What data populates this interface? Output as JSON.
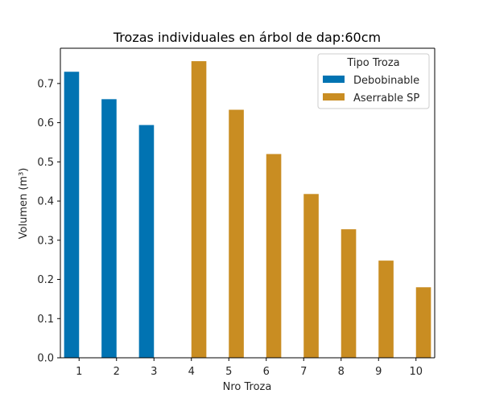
{
  "chart_data": {
    "type": "bar",
    "title": "Trozas individuales en árbol de dap:60cm",
    "xlabel": "Nro Troza",
    "ylabel": "Volumen (m³)",
    "categories": [
      "1",
      "2",
      "3",
      "4",
      "5",
      "6",
      "7",
      "8",
      "9",
      "10"
    ],
    "ylim": [
      0,
      0.79
    ],
    "yticks": [
      0.0,
      0.1,
      0.2,
      0.3,
      0.4,
      0.5,
      0.6,
      0.7
    ],
    "ytick_labels": [
      "0.0",
      "0.1",
      "0.2",
      "0.3",
      "0.4",
      "0.5",
      "0.6",
      "0.7"
    ],
    "grid": false,
    "legend": {
      "title": "Tipo Troza",
      "placement": "top-right"
    },
    "series": [
      {
        "name": "Debobinable",
        "color": "#0173b2",
        "values": [
          0.73,
          0.66,
          0.594,
          null,
          null,
          null,
          null,
          null,
          null,
          null
        ]
      },
      {
        "name": "Aserrable SP",
        "color": "#c98d22",
        "values": [
          null,
          null,
          null,
          0.757,
          0.633,
          0.52,
          0.418,
          0.328,
          0.248,
          0.18
        ]
      }
    ]
  }
}
